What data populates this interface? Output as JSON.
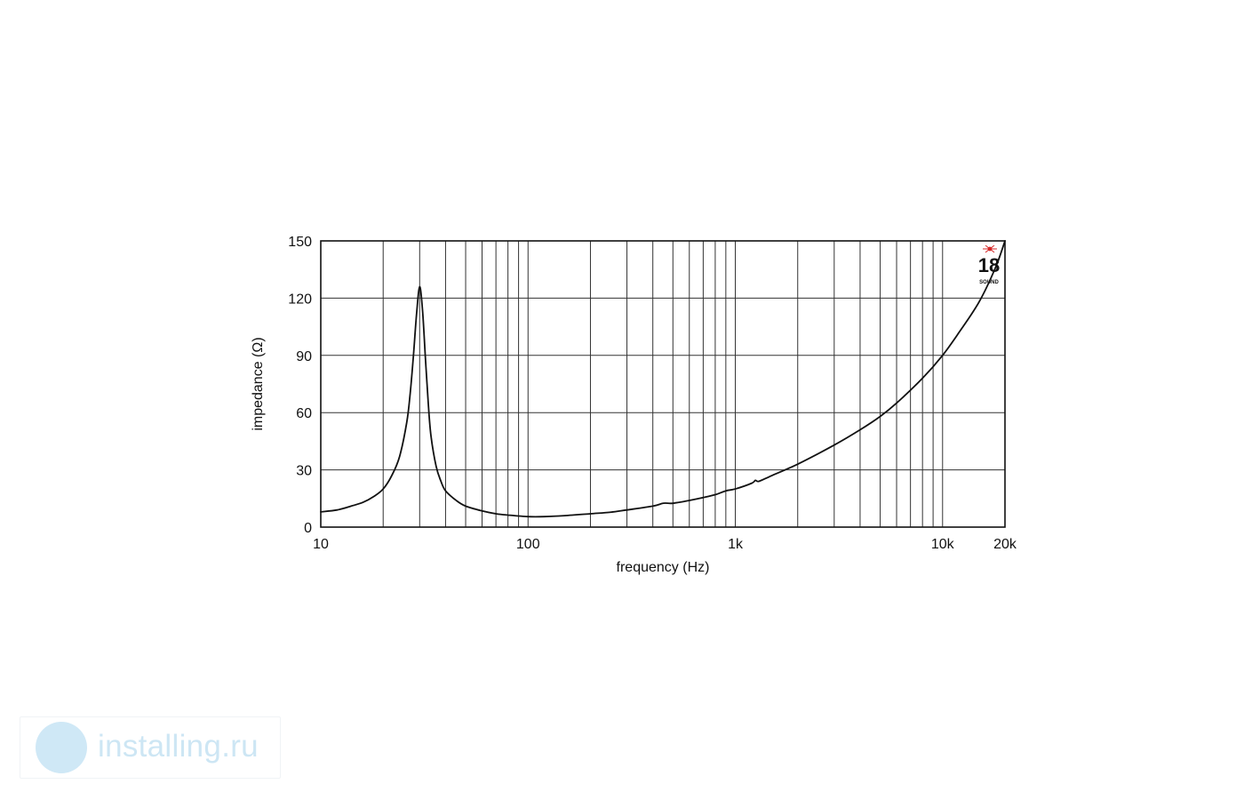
{
  "chart_data": {
    "type": "line",
    "xlabel": "frequency (Hz)",
    "ylabel": "impedance (Ω)",
    "xscale": "log",
    "xlim": [
      10,
      20000
    ],
    "ylim": [
      0,
      150
    ],
    "x_ticks": [
      {
        "value": 10,
        "label": "10"
      },
      {
        "value": 100,
        "label": "100"
      },
      {
        "value": 1000,
        "label": "1k"
      },
      {
        "value": 10000,
        "label": "10k"
      },
      {
        "value": 20000,
        "label": "20k"
      }
    ],
    "y_ticks": [
      {
        "value": 0,
        "label": "0"
      },
      {
        "value": 30,
        "label": "30"
      },
      {
        "value": 60,
        "label": "60"
      },
      {
        "value": 90,
        "label": "90"
      },
      {
        "value": 120,
        "label": "120"
      },
      {
        "value": 150,
        "label": "150"
      }
    ],
    "grid": true,
    "series": [
      {
        "x": [
          10,
          12,
          14,
          16,
          18,
          20,
          22,
          24,
          26,
          27,
          28,
          29,
          30,
          31,
          32,
          33,
          34,
          36,
          38,
          40,
          45,
          50,
          60,
          70,
          80,
          100,
          120,
          150,
          200,
          250,
          300,
          400,
          450,
          500,
          600,
          700,
          800,
          900,
          1000,
          1200,
          1250,
          1300,
          1500,
          2000,
          3000,
          4000,
          5000,
          6000,
          8000,
          10000,
          12000,
          15000,
          18000,
          20000
        ],
        "y": [
          8,
          9,
          11,
          13,
          16,
          20,
          27,
          37,
          55,
          70,
          90,
          112,
          126,
          113,
          88,
          65,
          48,
          32,
          24,
          19,
          14,
          11,
          8.5,
          7,
          6.3,
          5.5,
          5.5,
          6,
          7,
          7.8,
          9,
          11,
          12.5,
          12.5,
          14,
          15.5,
          17,
          19,
          20,
          23,
          24.5,
          24,
          27,
          33,
          43,
          51,
          58,
          65,
          78,
          90,
          102,
          118,
          136,
          150
        ]
      }
    ]
  },
  "logo": {
    "number": "18",
    "wordmark": "SOUND",
    "accent_color": "#d62828"
  },
  "watermark": {
    "text": "installing.ru",
    "color": "#cde6f4"
  }
}
